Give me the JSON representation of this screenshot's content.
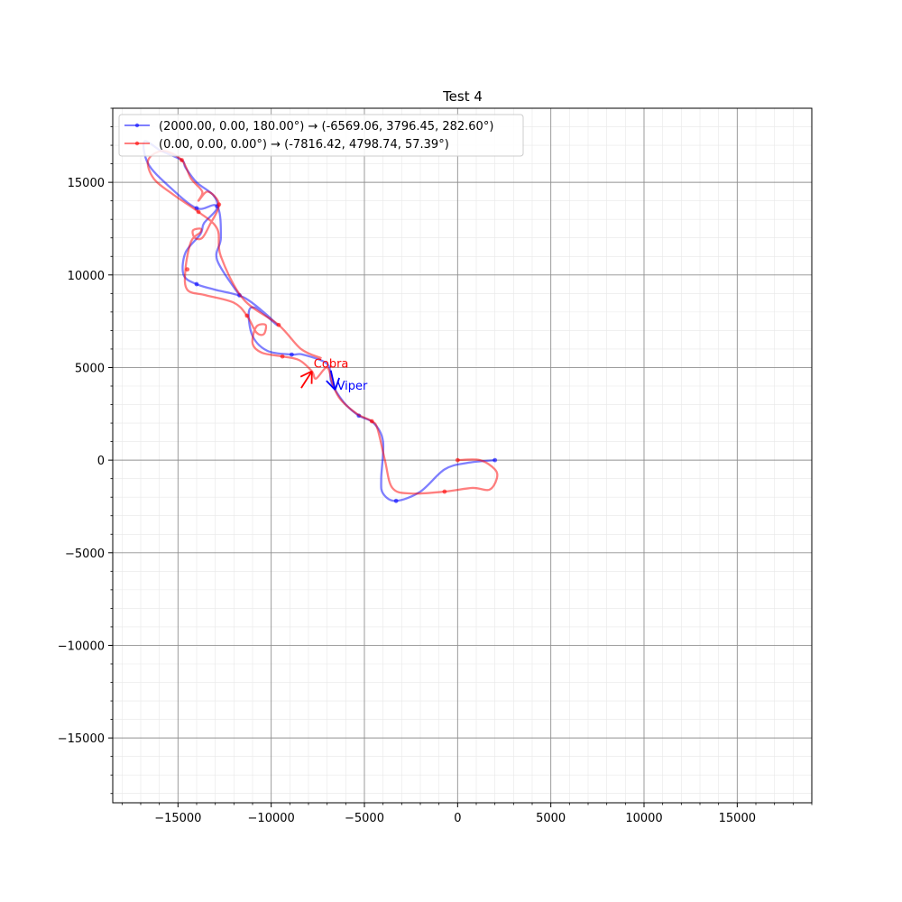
{
  "chart_data": {
    "type": "line",
    "title": "Test 4",
    "xlabel": "",
    "ylabel": "",
    "xlim": [
      -18500,
      19000
    ],
    "ylim": [
      -18500,
      19000
    ],
    "grid": true,
    "x_ticks": [
      -15000,
      -10000,
      -5000,
      0,
      5000,
      10000,
      15000
    ],
    "y_ticks": [
      -15000,
      -10000,
      -5000,
      0,
      5000,
      10000,
      15000
    ],
    "x_tick_labels": [
      "−15000",
      "−10000",
      "−5000",
      "0",
      "5000",
      "10000",
      "15000"
    ],
    "y_tick_labels": [
      "−15000",
      "−10000",
      "−5000",
      "0",
      "5000",
      "10000",
      "15000"
    ],
    "legend_position": "top-left",
    "series": [
      {
        "name": "(2000.00, 0.00, 180.00°) → (-6569.06, 3796.45, 282.60°)",
        "color": "#0000ff",
        "marker_label": "Viper",
        "heading_deg": 282.6,
        "points": [
          [
            2000,
            0
          ],
          [
            500,
            -150
          ],
          [
            -700,
            -500
          ],
          [
            -2000,
            -1700
          ],
          [
            -3300,
            -2200
          ],
          [
            -4000,
            -1800
          ],
          [
            -4100,
            -1000
          ],
          [
            -4000,
            1000
          ],
          [
            -4500,
            2000
          ],
          [
            -5300,
            2400
          ],
          [
            -6000,
            3000
          ],
          [
            -6569,
            3796
          ],
          [
            -6800,
            4300
          ],
          [
            -7000,
            5200
          ],
          [
            -8300,
            5700
          ],
          [
            -8900,
            5700
          ],
          [
            -10200,
            5900
          ],
          [
            -11000,
            6700
          ],
          [
            -11200,
            8000
          ],
          [
            -10800,
            8200
          ],
          [
            -9700,
            7300
          ],
          [
            -10300,
            7900
          ],
          [
            -11500,
            8800
          ],
          [
            -13000,
            9200
          ],
          [
            -14000,
            9500
          ],
          [
            -14700,
            10000
          ],
          [
            -14600,
            11200
          ],
          [
            -13800,
            12200
          ],
          [
            -13600,
            12800
          ],
          [
            -12900,
            13600
          ],
          [
            -13100,
            14300
          ],
          [
            -14000,
            15000
          ],
          [
            -14600,
            15800
          ],
          [
            -14800,
            16200
          ],
          [
            -15900,
            16700
          ],
          [
            -16800,
            17200
          ],
          [
            -16600,
            16000
          ],
          [
            -15500,
            14800
          ],
          [
            -14000,
            13600
          ],
          [
            -12900,
            13700
          ],
          [
            -12700,
            12000
          ],
          [
            -12900,
            10800
          ],
          [
            -11700,
            8900
          ]
        ],
        "marker_points": [
          [
            2000,
            0
          ],
          [
            -3300,
            -2200
          ],
          [
            -5300,
            2400
          ],
          [
            -8900,
            5700
          ],
          [
            -14000,
            9500
          ],
          [
            -12900,
            13700
          ],
          [
            -14000,
            13600
          ],
          [
            -11700,
            8900
          ]
        ]
      },
      {
        "name": "(0.00, 0.00, 0.00°) → (-7816.42, 4798.74, 57.39°)",
        "color": "#ff0000",
        "marker_label": "Cobra",
        "heading_deg": 57.39,
        "points": [
          [
            0,
            0
          ],
          [
            1200,
            0
          ],
          [
            2000,
            -500
          ],
          [
            2100,
            -1000
          ],
          [
            1700,
            -1600
          ],
          [
            800,
            -1500
          ],
          [
            -700,
            -1700
          ],
          [
            -2500,
            -1800
          ],
          [
            -3500,
            -1500
          ],
          [
            -3900,
            0
          ],
          [
            -4300,
            1700
          ],
          [
            -4600,
            2100
          ],
          [
            -5400,
            2500
          ],
          [
            -6300,
            3300
          ],
          [
            -6700,
            4100
          ],
          [
            -7000,
            5000
          ],
          [
            -7600,
            4400
          ],
          [
            -7816,
            4799
          ],
          [
            -8500,
            5400
          ],
          [
            -9400,
            5600
          ],
          [
            -10500,
            5800
          ],
          [
            -11000,
            6300
          ],
          [
            -10800,
            7200
          ],
          [
            -10300,
            7300
          ],
          [
            -10400,
            6800
          ],
          [
            -10800,
            6900
          ],
          [
            -11300,
            7800
          ],
          [
            -12000,
            8500
          ],
          [
            -13500,
            8900
          ],
          [
            -14500,
            9200
          ],
          [
            -14600,
            10300
          ],
          [
            -14300,
            11800
          ],
          [
            -13800,
            12300
          ],
          [
            -13800,
            12500
          ],
          [
            -14200,
            12400
          ],
          [
            -14100,
            12000
          ],
          [
            -13700,
            12000
          ],
          [
            -13300,
            12700
          ],
          [
            -12800,
            13800
          ],
          [
            -13400,
            14500
          ],
          [
            -13900,
            14000
          ],
          [
            -13700,
            14500
          ],
          [
            -14300,
            15200
          ],
          [
            -14800,
            16200
          ],
          [
            -15800,
            16700
          ],
          [
            -16600,
            16200
          ],
          [
            -16300,
            15200
          ],
          [
            -15200,
            14300
          ],
          [
            -13900,
            13400
          ],
          [
            -12900,
            12500
          ],
          [
            -12700,
            11000
          ],
          [
            -11500,
            8700
          ],
          [
            -9600,
            7300
          ],
          [
            -8400,
            6000
          ],
          [
            -7300,
            5500
          ]
        ],
        "marker_points": [
          [
            0,
            0
          ],
          [
            -700,
            -1700
          ],
          [
            -4600,
            2100
          ],
          [
            -9400,
            5600
          ],
          [
            -11300,
            7800
          ],
          [
            -14500,
            10300
          ],
          [
            -12800,
            13800
          ],
          [
            -14800,
            16200
          ],
          [
            -13900,
            13400
          ],
          [
            -9600,
            7300
          ]
        ]
      }
    ]
  }
}
